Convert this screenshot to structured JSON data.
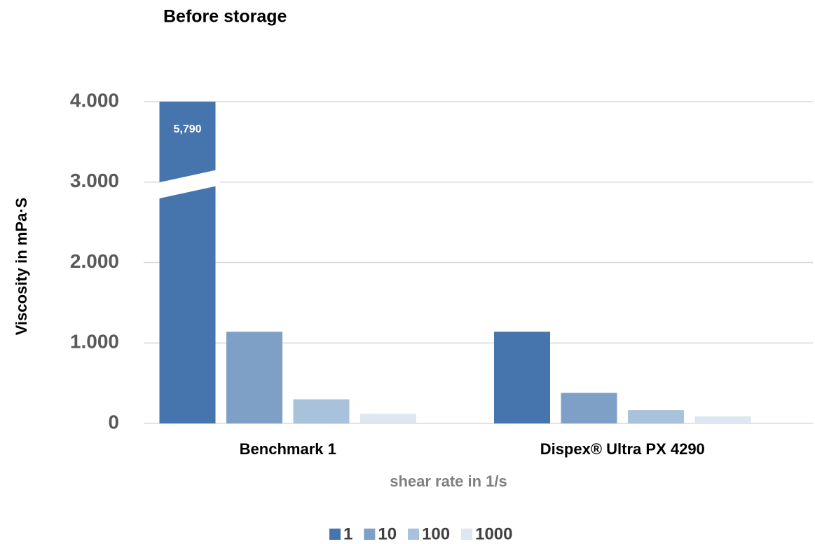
{
  "chart_data": {
    "type": "bar",
    "title": "Before storage",
    "xlabel": "shear rate in 1/s",
    "ylabel": "Viscosity  in mPa·S",
    "categories": [
      "Benchmark 1",
      "Dispex® Ultra PX 4290"
    ],
    "series": [
      {
        "name": "1",
        "color": "#4674ac",
        "values": [
          5790,
          1140
        ],
        "value_labels": [
          "5,790",
          null
        ]
      },
      {
        "name": "10",
        "color": "#7ea0c6",
        "values": [
          1140,
          380
        ]
      },
      {
        "name": "100",
        "color": "#a8c2dc",
        "values": [
          300,
          165
        ]
      },
      {
        "name": "1000",
        "color": "#dde6f1",
        "values": [
          120,
          87
        ]
      }
    ],
    "ylim": [
      0,
      4000
    ],
    "yticks": [
      {
        "value": 0,
        "label": "0"
      },
      {
        "value": 1000,
        "label": "1.000"
      },
      {
        "value": 2000,
        "label": "2.000"
      },
      {
        "value": 3000,
        "label": "3.000"
      },
      {
        "value": 4000,
        "label": "4.000"
      }
    ],
    "grid": true,
    "legend": "bottom"
  }
}
